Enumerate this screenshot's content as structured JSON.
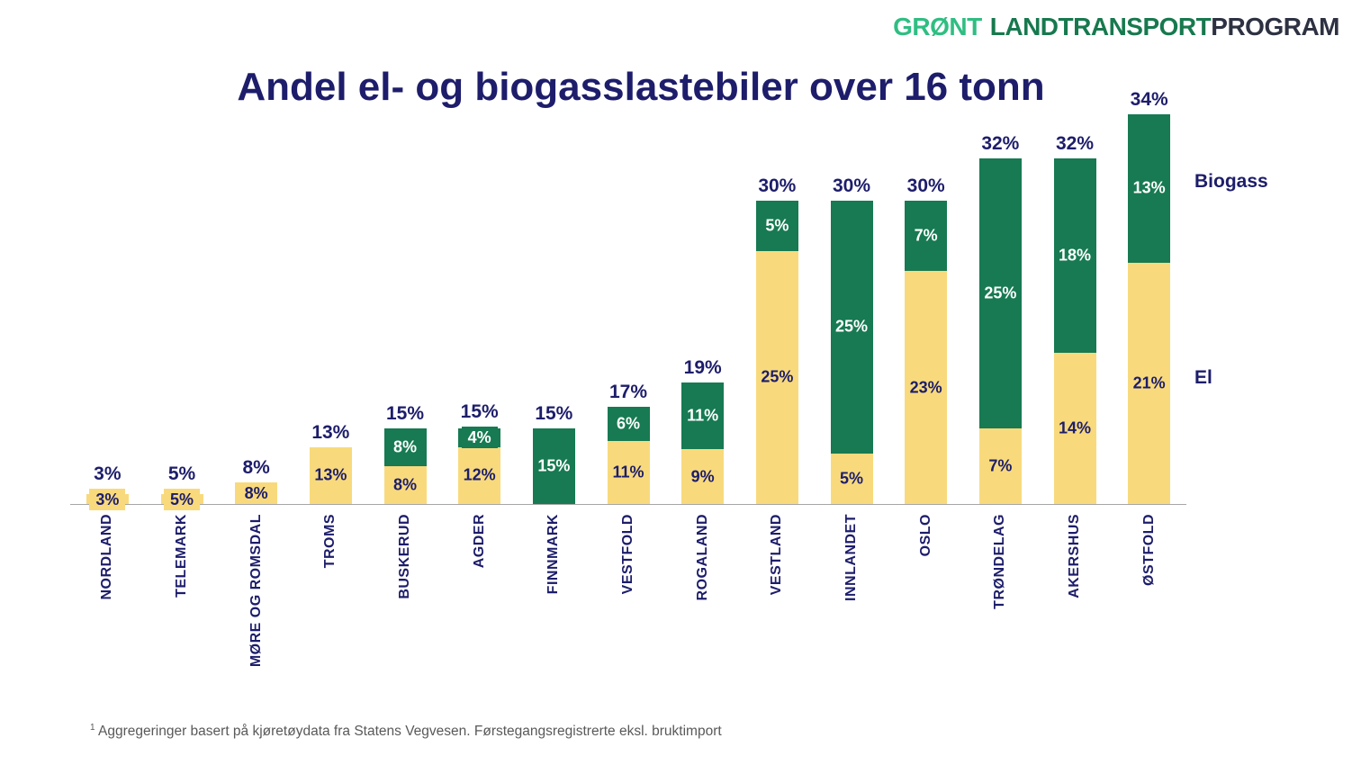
{
  "logo": {
    "part1": "GRØNT",
    "part2": "LANDTRANSPORT",
    "part3": "PROGRAM"
  },
  "title": "Andel el- og biogasslastebiler over 16 tonn",
  "legend": {
    "biogass": "Biogass",
    "el": "El"
  },
  "footnote": {
    "sup": "1",
    "text": " Aggregeringer basert på kjøretøydata fra Statens Vegvesen. Førstegangsregistrerte eksl. bruktimport"
  },
  "colors": {
    "el": "#F8DA7D",
    "biogass": "#177A52",
    "navy": "#1D1D6B",
    "label_on_green": "#FFFFFF",
    "logo_green": "#2FBE82",
    "logo_dark_green": "#17794E",
    "logo_navy": "#2D3142",
    "axis": "#A6A6A6",
    "footnote_gray": "#595959"
  },
  "chart_data": {
    "type": "bar",
    "stacked": true,
    "title": "Andel el- og biogasslastebiler over 16 tonn",
    "unit": "%",
    "legend_position": "right",
    "grid": false,
    "categories": [
      "NORDLAND",
      "TELEMARK",
      "MØRE OG ROMSDAL",
      "TROMS",
      "BUSKERUD",
      "AGDER",
      "FINNMARK",
      "VESTFOLD",
      "ROGALAND",
      "VESTLAND",
      "INNLANDET",
      "OSLO",
      "TRØNDELAG",
      "AKERSHUS",
      "ØSTFOLD"
    ],
    "series": [
      {
        "name": "El",
        "values": [
          3,
          5,
          8,
          13,
          8,
          12,
          0,
          11,
          9,
          25,
          5,
          23,
          7,
          14,
          21
        ]
      },
      {
        "name": "Biogass",
        "values": [
          0,
          0,
          0,
          0,
          8,
          4,
          15,
          6,
          11,
          5,
          25,
          7,
          25,
          18,
          13
        ]
      }
    ],
    "totals": [
      3,
      5,
      8,
      13,
      15,
      15,
      15,
      17,
      19,
      30,
      30,
      30,
      32,
      32,
      34
    ]
  }
}
